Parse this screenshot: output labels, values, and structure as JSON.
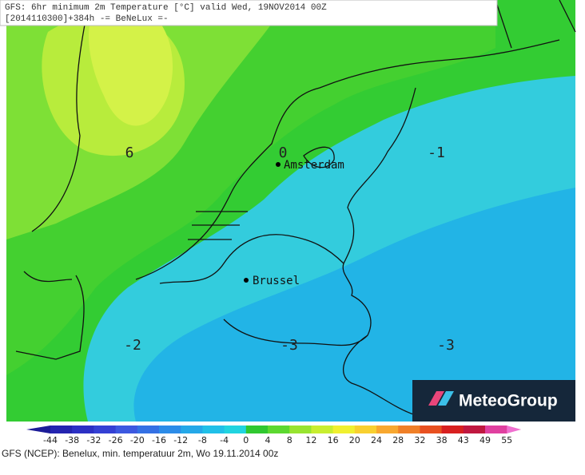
{
  "header": {
    "line1": "GFS: 6hr minimum 2m Temperature [°C] valid Wed, 19NOV2014 00Z",
    "line2": "[2014110300]+384h -= BeNeLux =-"
  },
  "map_labels": [
    "6",
    "0",
    "-1",
    "-2",
    "-3",
    "-3"
  ],
  "cities": [
    "Amsterdam",
    "Brussel"
  ],
  "logo": "MeteoGroup",
  "colorbar": {
    "labels": [
      "-44",
      "-38",
      "-32",
      "-26",
      "-20",
      "-16",
      "-12",
      "-8",
      "-4",
      "0",
      "4",
      "8",
      "12",
      "16",
      "20",
      "24",
      "28",
      "32",
      "38",
      "43",
      "49",
      "55"
    ],
    "colors": [
      "#1c1c98",
      "#2424b0",
      "#2c30c4",
      "#3440d4",
      "#3c58e0",
      "#3470e4",
      "#2c8ce8",
      "#24a8e8",
      "#20c0e8",
      "#20d4e0",
      "#30c830",
      "#5cd830",
      "#98e430",
      "#c8ee30",
      "#f0f030",
      "#f8d030",
      "#f8a830",
      "#f08028",
      "#e85020",
      "#d82020",
      "#c01840",
      "#e040a0",
      "#f070d0"
    ]
  },
  "caption": "GFS (NCEP): Benelux, min. temperatuur 2m, Wo 19.11.2014 00z"
}
